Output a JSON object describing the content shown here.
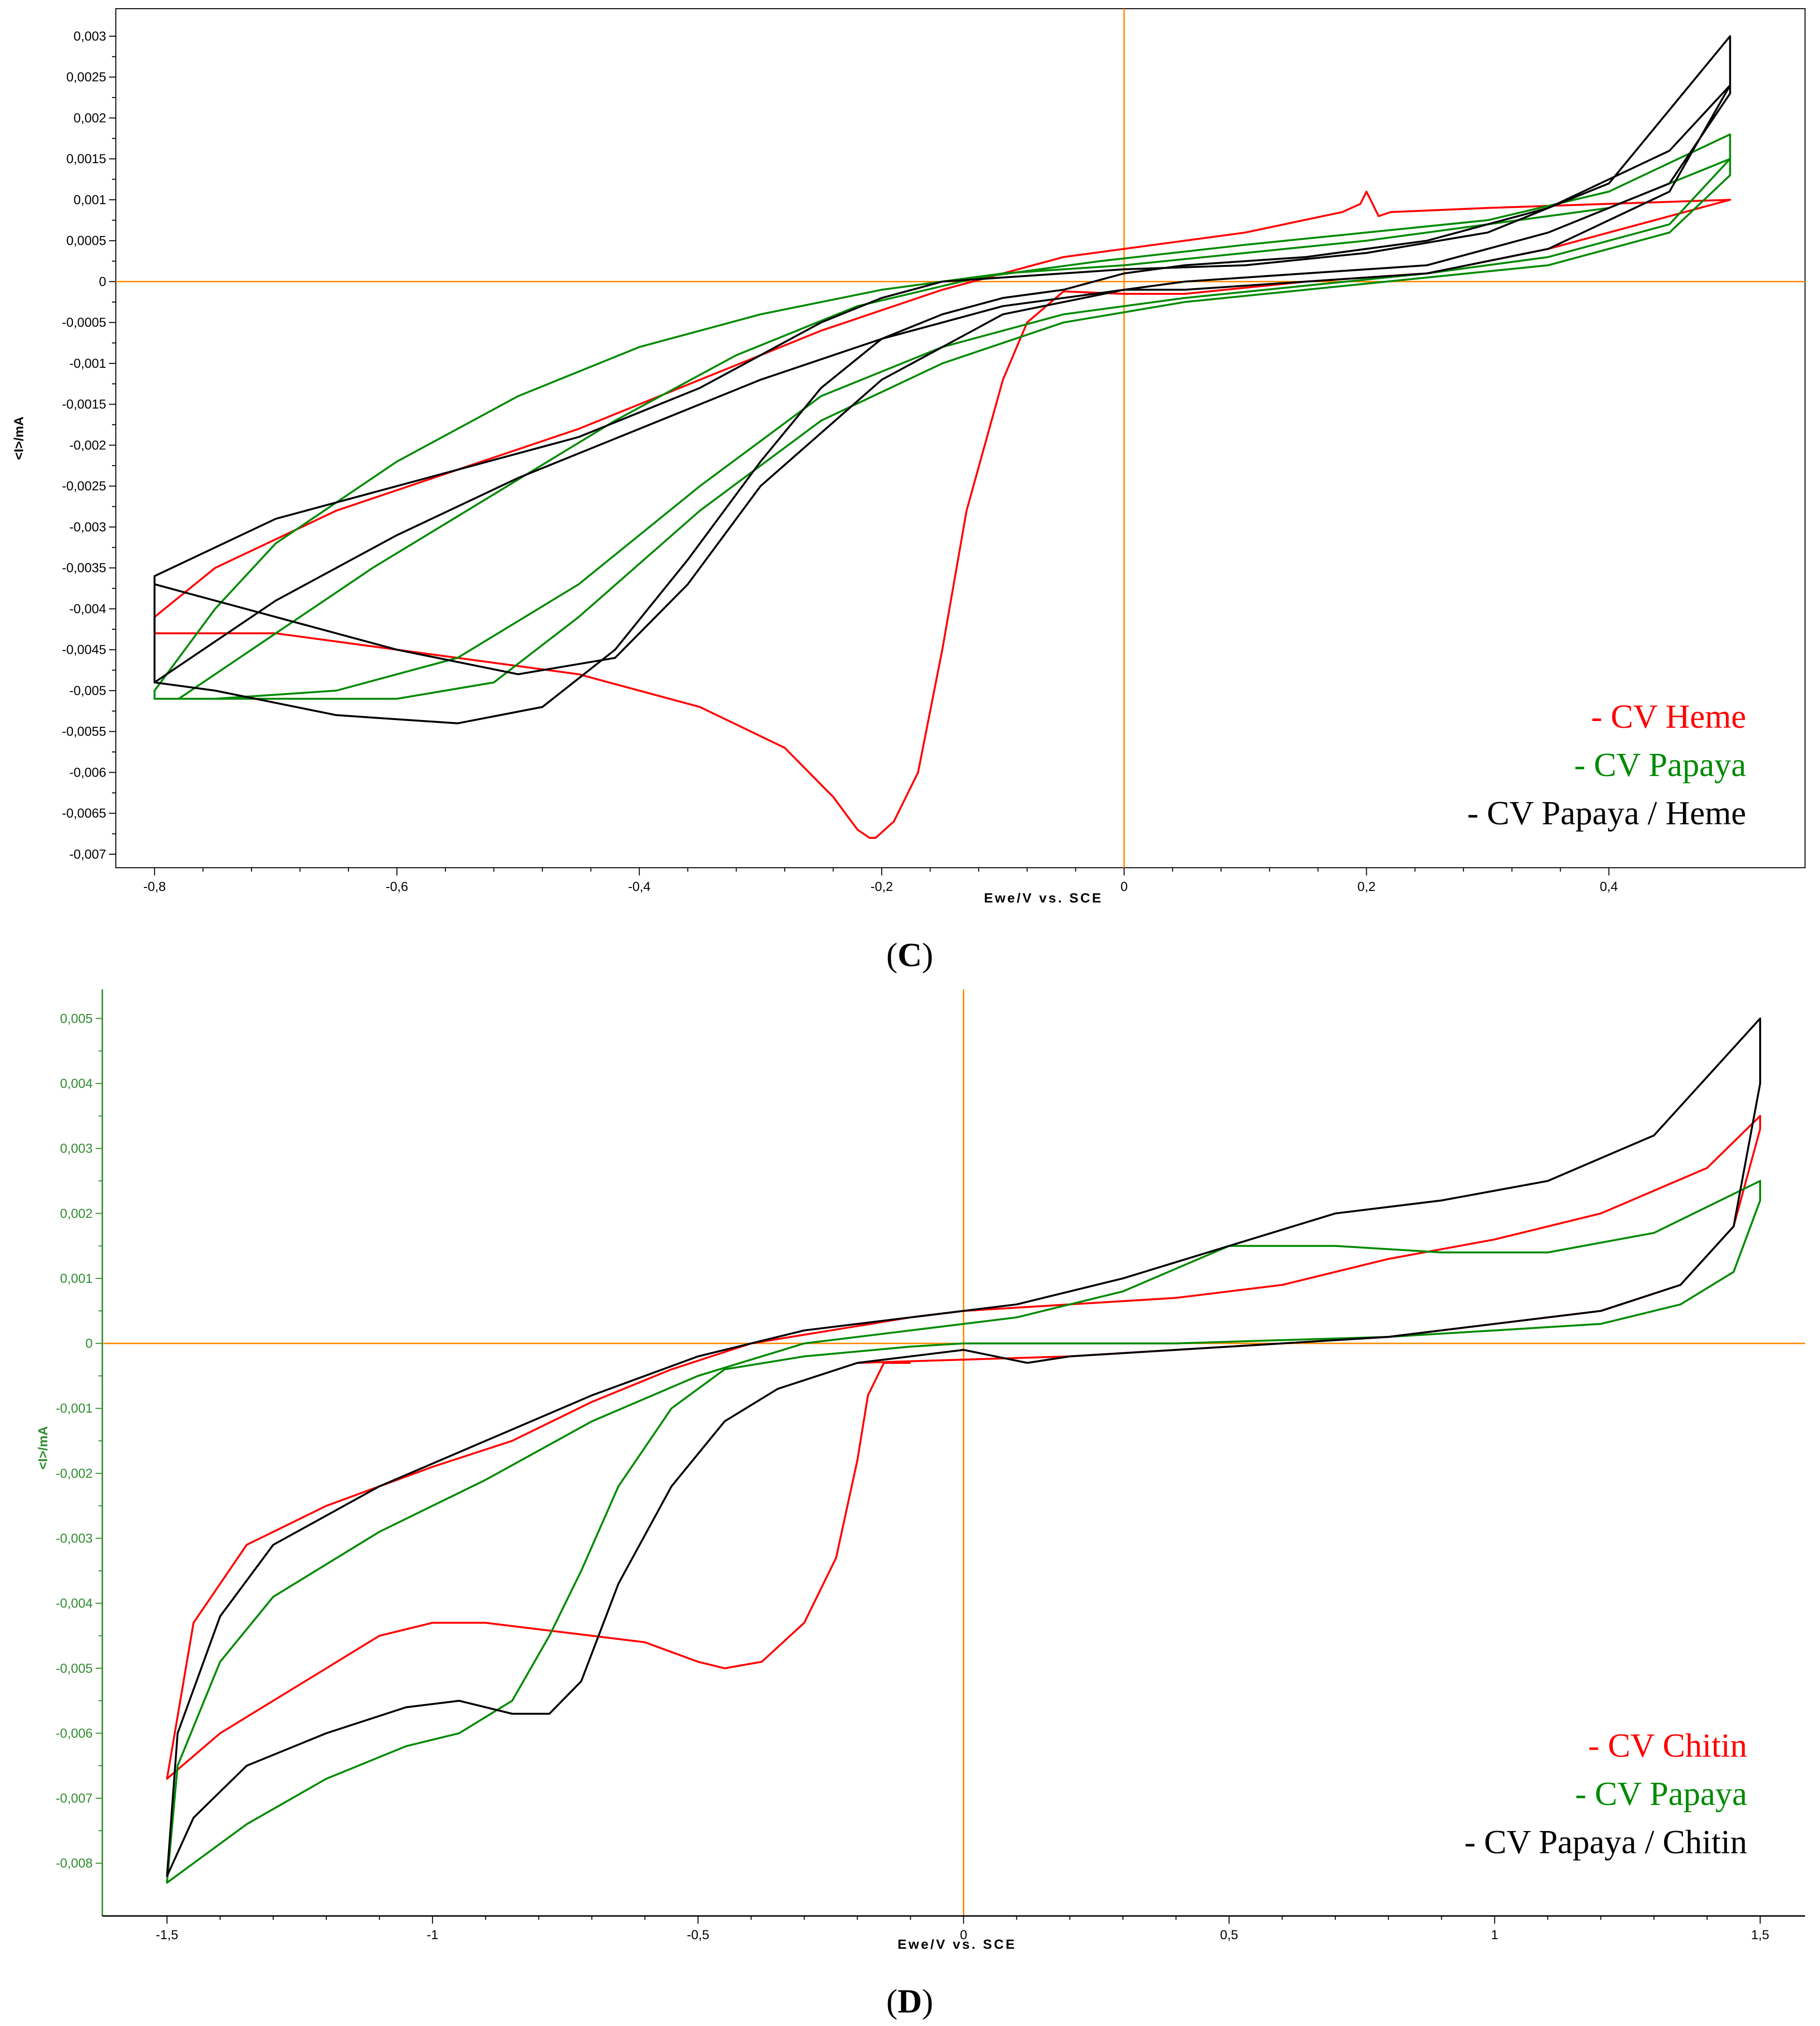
{
  "colors": {
    "red": "#ff0000",
    "green": "#008a00",
    "black": "#000000",
    "orange": "#ff8c00",
    "axis_green": "#2e8b2e"
  },
  "chart_data": [
    {
      "type": "line",
      "panel_label": "C",
      "xlabel": "Ewe/V vs. SCE",
      "ylabel": "<I>/mA",
      "xlim": [
        -0.82,
        0.53
      ],
      "ylim": [
        -0.007,
        0.0031
      ],
      "xticks": [
        -0.8,
        -0.6,
        -0.4,
        -0.2,
        0,
        0.2,
        0.4
      ],
      "xtick_labels": [
        "-0,8",
        "-0,6",
        "-0,4",
        "-0,2",
        "0",
        "0,2",
        "0,4"
      ],
      "yticks": [
        0.003,
        0.0025,
        0.002,
        0.0015,
        0.001,
        0.0005,
        0,
        -0.0005,
        -0.001,
        -0.0015,
        -0.002,
        -0.0025,
        -0.003,
        -0.0035,
        -0.004,
        -0.0045,
        -0.005,
        -0.0055,
        -0.006,
        -0.0065,
        -0.007
      ],
      "ytick_labels": [
        "0,003",
        "0,0025",
        "0,002",
        "0,0015",
        "0,001",
        "0,0005",
        "0",
        "-0,0005",
        "-0,001",
        "-0,0015",
        "-0,002",
        "-0,0025",
        "-0,003",
        "-0,0035",
        "-0,004",
        "-0,0045",
        "-0,005",
        "-0,0055",
        "-0,006",
        "-0,0065",
        "-0,007"
      ],
      "legend_position": "bottom-right",
      "series": [
        {
          "name": "- CV Heme",
          "color": "red",
          "x": [
            -0.1,
            -0.13,
            -0.15,
            -0.17,
            -0.19,
            -0.205,
            -0.21,
            -0.22,
            -0.24,
            -0.28,
            -0.35,
            -0.45,
            -0.6,
            -0.7,
            -0.8,
            -0.8,
            -0.75,
            -0.65,
            -0.55,
            -0.45,
            -0.35,
            -0.25,
            -0.15,
            -0.05,
            0,
            0.1,
            0.18,
            0.195,
            0.2,
            0.205,
            0.21,
            0.22,
            0.3,
            0.4,
            0.5,
            0.5,
            0.45,
            0.35,
            0.25,
            0.15,
            0.05,
            0,
            -0.05,
            -0.08,
            -0.1
          ],
          "y": [
            -0.0012,
            -0.0028,
            -0.0045,
            -0.006,
            -0.0066,
            -0.0068,
            -0.0068,
            -0.0067,
            -0.0063,
            -0.0057,
            -0.0052,
            -0.0048,
            -0.0045,
            -0.0043,
            -0.0043,
            -0.0041,
            -0.0035,
            -0.0028,
            -0.0023,
            -0.0018,
            -0.0012,
            -0.0006,
            -0.0001,
            0.0003,
            0.0004,
            0.0006,
            0.00085,
            0.00095,
            0.0011,
            0.00095,
            0.0008,
            0.00085,
            0.0009,
            0.00095,
            0.001,
            0.001,
            0.0008,
            0.0004,
            0.0001,
            0.0,
            -0.00015,
            -0.00015,
            -0.00012,
            -0.0005,
            -0.0012
          ]
        },
        {
          "name": "- CV Papaya",
          "color": "green",
          "x": [
            -0.8,
            -0.78,
            -0.72,
            -0.62,
            -0.52,
            -0.42,
            -0.32,
            -0.22,
            -0.12,
            -0.02,
            0.1,
            0.2,
            0.3,
            0.4,
            0.5,
            0.5,
            0.45,
            0.35,
            0.25,
            0.15,
            0.05,
            -0.05,
            -0.15,
            -0.25,
            -0.35,
            -0.45,
            -0.55,
            -0.65,
            -0.75,
            -0.8,
            -0.8,
            -0.75,
            -0.7,
            -0.6,
            -0.5,
            -0.4,
            -0.3,
            -0.2,
            -0.1,
            0,
            0.1,
            0.2,
            0.3,
            0.4,
            0.5,
            0.5,
            0.45,
            0.35,
            0.25,
            0.15,
            0.05,
            -0.05,
            -0.15,
            -0.25,
            -0.35,
            -0.45,
            -0.52,
            -0.6,
            -0.7,
            -0.78,
            -0.8
          ],
          "y": [
            -0.0051,
            -0.0051,
            -0.0045,
            -0.0035,
            -0.0026,
            -0.0017,
            -0.0009,
            -0.0003,
            5e-05,
            0.00025,
            0.00045,
            0.0006,
            0.00075,
            0.0011,
            0.0018,
            0.0015,
            0.0007,
            0.0003,
            0.0001,
            -5e-05,
            -0.0002,
            -0.0004,
            -0.0008,
            -0.0014,
            -0.0025,
            -0.0037,
            -0.0046,
            -0.005,
            -0.0051,
            -0.0051,
            -0.005,
            -0.004,
            -0.0032,
            -0.0022,
            -0.0014,
            -0.0008,
            -0.0004,
            -0.0001,
            0.0001,
            0.0002,
            0.00035,
            0.0005,
            0.0007,
            0.0009,
            0.0015,
            0.0013,
            0.0006,
            0.0002,
            5e-05,
            -0.0001,
            -0.00025,
            -0.0005,
            -0.001,
            -0.0017,
            -0.0028,
            -0.0041,
            -0.0049,
            -0.0051,
            -0.0051,
            -0.0051,
            -0.0051
          ]
        },
        {
          "name": "- CV Papaya / Heme",
          "color": "black",
          "x": [
            -0.8,
            -0.75,
            -0.65,
            -0.55,
            -0.48,
            -0.42,
            -0.36,
            -0.3,
            -0.25,
            -0.2,
            -0.15,
            -0.1,
            -0.05,
            0,
            0.05,
            0.15,
            0.25,
            0.35,
            0.45,
            0.5,
            0.5,
            0.45,
            0.35,
            0.25,
            0.15,
            0.05,
            0,
            -0.1,
            -0.2,
            -0.3,
            -0.4,
            -0.5,
            -0.6,
            -0.7,
            -0.8,
            -0.8,
            -0.7,
            -0.55,
            -0.45,
            -0.35,
            -0.3,
            -0.25,
            -0.2,
            -0.15,
            -0.1,
            -0.05,
            0,
            0.1,
            0.2,
            0.3,
            0.4,
            0.5,
            0.5,
            0.45,
            0.35,
            0.25,
            0.15,
            0.05,
            0,
            -0.1,
            -0.2,
            -0.3,
            -0.36,
            -0.42,
            -0.5,
            -0.6,
            -0.7,
            -0.8
          ],
          "y": [
            -0.0049,
            -0.005,
            -0.0053,
            -0.0054,
            -0.0052,
            -0.0045,
            -0.0034,
            -0.0022,
            -0.0013,
            -0.0007,
            -0.0004,
            -0.0002,
            -0.0001,
            0.0001,
            0.0002,
            0.0003,
            0.0005,
            0.0009,
            0.0016,
            0.0024,
            0.0023,
            0.0012,
            0.0006,
            0.0002,
            0.0001,
            0.0,
            -0.0001,
            -0.0003,
            -0.0007,
            -0.0012,
            -0.0018,
            -0.0024,
            -0.0031,
            -0.0039,
            -0.0049,
            -0.0036,
            -0.0029,
            -0.0023,
            -0.0019,
            -0.0013,
            -0.0009,
            -0.0005,
            -0.0002,
            0.0,
            5e-05,
            0.0001,
            0.00015,
            0.0002,
            0.00035,
            0.0006,
            0.0012,
            0.003,
            0.0024,
            0.0011,
            0.0004,
            0.0001,
            0.0,
            -0.0001,
            -0.0001,
            -0.0004,
            -0.0012,
            -0.0025,
            -0.0037,
            -0.0046,
            -0.0048,
            -0.0045,
            -0.0041,
            -0.0037
          ]
        }
      ]
    },
    {
      "type": "line",
      "panel_label": "D",
      "xlabel": "Ewe/V vs. SCE",
      "ylabel": "<I>/mA",
      "xlim": [
        -1.56,
        1.53
      ],
      "ylim": [
        -0.0085,
        0.0053
      ],
      "xticks": [
        -1.5,
        -1,
        -0.5,
        0,
        0.5,
        1,
        1.5
      ],
      "xtick_labels": [
        "-1,5",
        "-1",
        "-0,5",
        "0",
        "0,5",
        "1",
        "1,5"
      ],
      "yticks": [
        0.005,
        0.004,
        0.003,
        0.002,
        0.001,
        0,
        -0.001,
        -0.002,
        -0.003,
        -0.004,
        -0.005,
        -0.006,
        -0.007,
        -0.008
      ],
      "ytick_labels": [
        "0,005",
        "0,004",
        "0,003",
        "0,002",
        "0,001",
        "0",
        "-0,001",
        "-0,002",
        "-0,003",
        "-0,004",
        "-0,005",
        "-0,006",
        "-0,007",
        "-0,008"
      ],
      "legend_position": "bottom-right",
      "series": [
        {
          "name": "- CV Chitin",
          "color": "red",
          "x": [
            -0.1,
            -0.15,
            -0.18,
            -0.2,
            -0.24,
            -0.3,
            -0.38,
            -0.45,
            -0.5,
            -0.6,
            -0.7,
            -0.8,
            -0.9,
            -1.0,
            -1.1,
            -1.2,
            -1.3,
            -1.4,
            -1.5,
            -1.45,
            -1.35,
            -1.2,
            -1.0,
            -0.85,
            -0.7,
            -0.55,
            -0.4,
            -0.25,
            -0.1,
            0,
            0.2,
            0.4,
            0.6,
            0.8,
            1.0,
            1.2,
            1.4,
            1.5,
            1.5,
            1.45,
            1.35,
            1.2,
            1.0,
            0.8,
            0.6,
            0.4,
            0.2,
            0,
            -0.2
          ],
          "y": [
            -0.0003,
            -0.0003,
            -0.0008,
            -0.0018,
            -0.0033,
            -0.0043,
            -0.0049,
            -0.005,
            -0.0049,
            -0.0046,
            -0.0045,
            -0.0044,
            -0.0043,
            -0.0043,
            -0.0045,
            -0.005,
            -0.0055,
            -0.006,
            -0.0067,
            -0.0043,
            -0.0031,
            -0.0025,
            -0.0019,
            -0.0015,
            -0.0009,
            -0.0004,
            0.0,
            0.0002,
            0.0004,
            0.0005,
            0.0006,
            0.0007,
            0.0009,
            0.0013,
            0.0016,
            0.002,
            0.0027,
            0.0035,
            0.0033,
            0.0018,
            0.0009,
            0.0005,
            0.0003,
            0.0001,
            0.0,
            -0.0001,
            -0.0002,
            -0.00025,
            -0.0003
          ]
        },
        {
          "name": "- CV Papaya",
          "color": "green",
          "x": [
            -0.1,
            -0.3,
            -0.45,
            -0.55,
            -0.65,
            -0.72,
            -0.78,
            -0.85,
            -0.95,
            -1.05,
            -1.2,
            -1.35,
            -1.45,
            -1.5,
            -1.48,
            -1.4,
            -1.3,
            -1.1,
            -0.9,
            -0.7,
            -0.5,
            -0.3,
            -0.1,
            0.1,
            0.3,
            0.5,
            0.55,
            0.7,
            0.9,
            1.1,
            1.3,
            1.5,
            1.5,
            1.45,
            1.35,
            1.2,
            1.0,
            0.8,
            0.6,
            0.4,
            0.2,
            0,
            -0.1
          ],
          "y": [
            -5e-05,
            -0.0002,
            -0.0004,
            -0.001,
            -0.0022,
            -0.0035,
            -0.0045,
            -0.0055,
            -0.006,
            -0.0062,
            -0.0067,
            -0.0074,
            -0.008,
            -0.0083,
            -0.0065,
            -0.0049,
            -0.0039,
            -0.0029,
            -0.0021,
            -0.0012,
            -0.0005,
            0.0,
            0.0002,
            0.0004,
            0.0008,
            0.0015,
            0.0015,
            0.0015,
            0.0014,
            0.0014,
            0.0017,
            0.0025,
            0.0022,
            0.0011,
            0.0006,
            0.0003,
            0.0002,
            0.0001,
            5e-05,
            0.0,
            0.0,
            0.0,
            -5e-05
          ]
        },
        {
          "name": "- CV Papaya / Chitin",
          "color": "black",
          "x": [
            0.12,
            0,
            -0.2,
            -0.35,
            -0.45,
            -0.55,
            -0.65,
            -0.72,
            -0.78,
            -0.85,
            -0.95,
            -1.05,
            -1.2,
            -1.35,
            -1.45,
            -1.5,
            -1.48,
            -1.4,
            -1.3,
            -1.1,
            -0.9,
            -0.7,
            -0.5,
            -0.3,
            -0.1,
            0.1,
            0.3,
            0.5,
            0.7,
            0.9,
            1.1,
            1.3,
            1.5,
            1.5,
            1.45,
            1.35,
            1.2,
            1.0,
            0.8,
            0.6,
            0.4,
            0.2,
            0.12
          ],
          "y": [
            -0.0003,
            -0.0001,
            -0.0003,
            -0.0007,
            -0.0012,
            -0.0022,
            -0.0037,
            -0.0052,
            -0.0057,
            -0.0057,
            -0.0055,
            -0.0056,
            -0.006,
            -0.0065,
            -0.0073,
            -0.0082,
            -0.006,
            -0.0042,
            -0.0031,
            -0.0022,
            -0.0015,
            -0.0008,
            -0.0002,
            0.0002,
            0.0004,
            0.0006,
            0.001,
            0.0015,
            0.002,
            0.0022,
            0.0025,
            0.0032,
            0.005,
            0.004,
            0.0018,
            0.0009,
            0.0005,
            0.0003,
            0.0001,
            0.0,
            -0.0001,
            -0.0002,
            -0.0003
          ]
        }
      ]
    }
  ]
}
